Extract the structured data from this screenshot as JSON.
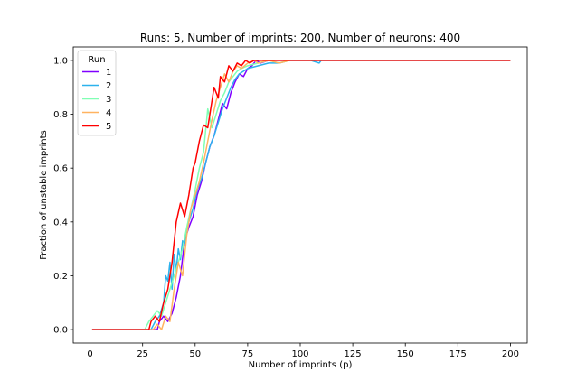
{
  "chart_data": {
    "type": "line",
    "title": "Runs: 5, Number of imprints: 200, Number of neurons: 400",
    "xlabel": "Number of imprints (p)",
    "ylabel": "Fraction of unstable imprints",
    "xlim": [
      -8,
      208
    ],
    "ylim": [
      -0.05,
      1.05
    ],
    "xticks": [
      0,
      25,
      50,
      75,
      100,
      125,
      150,
      175,
      200
    ],
    "yticks": [
      0.0,
      0.2,
      0.4,
      0.6,
      0.8,
      1.0
    ],
    "ytick_labels": [
      "0.0",
      "0.2",
      "0.4",
      "0.6",
      "0.8",
      "1.0"
    ],
    "grid": false,
    "legend": {
      "title": "Run",
      "position": "top-left"
    },
    "series": [
      {
        "name": "1",
        "color": "#8000ff",
        "x": [
          1,
          28,
          30,
          32,
          33,
          35,
          37,
          39,
          41,
          43,
          45,
          47,
          49,
          51,
          53,
          55,
          57,
          59,
          61,
          63,
          65,
          67,
          69,
          71,
          73,
          75,
          77,
          79,
          81,
          85,
          90,
          100,
          200
        ],
        "y": [
          0,
          0,
          0,
          0,
          0.03,
          0.05,
          0.03,
          0.06,
          0.12,
          0.2,
          0.33,
          0.38,
          0.42,
          0.5,
          0.55,
          0.62,
          0.68,
          0.72,
          0.78,
          0.84,
          0.82,
          0.88,
          0.92,
          0.95,
          0.94,
          0.97,
          0.98,
          1.0,
          0.99,
          1.0,
          1.0,
          1.0,
          1.0
        ]
      },
      {
        "name": "2",
        "color": "#2cb2ed",
        "x": [
          1,
          27,
          29,
          31,
          33,
          35,
          36,
          37,
          38,
          39,
          40,
          41,
          42,
          43,
          44,
          45,
          47,
          49,
          51,
          53,
          55,
          57,
          59,
          61,
          63,
          65,
          67,
          69,
          71,
          73,
          75,
          80,
          85,
          90,
          95,
          100,
          105,
          109,
          110,
          200
        ],
        "y": [
          0,
          0,
          0,
          0.03,
          0.05,
          0.1,
          0.2,
          0.18,
          0.25,
          0.15,
          0.28,
          0.22,
          0.3,
          0.26,
          0.33,
          0.32,
          0.4,
          0.45,
          0.52,
          0.56,
          0.62,
          0.68,
          0.72,
          0.77,
          0.82,
          0.86,
          0.9,
          0.93,
          0.95,
          0.96,
          0.97,
          0.98,
          0.99,
          0.99,
          1.0,
          1.0,
          1.0,
          0.99,
          1.0,
          1.0
        ]
      },
      {
        "name": "3",
        "color": "#80ffb4",
        "x": [
          1,
          26,
          28,
          30,
          32,
          34,
          36,
          38,
          40,
          42,
          44,
          46,
          48,
          50,
          52,
          54,
          56,
          58,
          60,
          62,
          64,
          66,
          68,
          70,
          72,
          75,
          80,
          85,
          90,
          95,
          100,
          200
        ],
        "y": [
          0,
          0,
          0.03,
          0.05,
          0.07,
          0.05,
          0.1,
          0.15,
          0.2,
          0.25,
          0.3,
          0.38,
          0.45,
          0.52,
          0.6,
          0.66,
          0.82,
          0.75,
          0.8,
          0.85,
          0.88,
          0.92,
          0.94,
          0.96,
          0.97,
          0.98,
          0.99,
          1.0,
          0.99,
          1.0,
          1.0,
          1.0
        ]
      },
      {
        "name": "4",
        "color": "#ffb360",
        "x": [
          1,
          30,
          32,
          34,
          36,
          38,
          40,
          42,
          44,
          46,
          48,
          50,
          52,
          54,
          56,
          58,
          60,
          62,
          64,
          66,
          68,
          70,
          72,
          75,
          78,
          80,
          85,
          90,
          95,
          100,
          200
        ],
        "y": [
          0,
          0,
          0.02,
          0.0,
          0.05,
          0.03,
          0.15,
          0.25,
          0.2,
          0.35,
          0.45,
          0.5,
          0.55,
          0.62,
          0.7,
          0.78,
          0.85,
          0.9,
          0.95,
          0.92,
          0.96,
          0.98,
          0.97,
          0.99,
          1.0,
          0.99,
          1.0,
          0.99,
          1.0,
          1.0,
          1.0
        ]
      },
      {
        "name": "5",
        "color": "#ff0000",
        "x": [
          1,
          28,
          29,
          31,
          33,
          35,
          37,
          39,
          41,
          43,
          45,
          47,
          49,
          50,
          52,
          54,
          56,
          57,
          59,
          61,
          62,
          64,
          66,
          68,
          70,
          72,
          74,
          76,
          78,
          80,
          85,
          90,
          95,
          100,
          200
        ],
        "y": [
          0,
          0,
          0.03,
          0.05,
          0.03,
          0.1,
          0.15,
          0.25,
          0.4,
          0.47,
          0.42,
          0.5,
          0.6,
          0.62,
          0.7,
          0.76,
          0.75,
          0.8,
          0.9,
          0.86,
          0.94,
          0.92,
          0.98,
          0.96,
          0.99,
          0.98,
          1.0,
          0.99,
          1.0,
          1.0,
          1.0,
          1.0,
          1.0,
          1.0,
          1.0
        ]
      }
    ]
  }
}
